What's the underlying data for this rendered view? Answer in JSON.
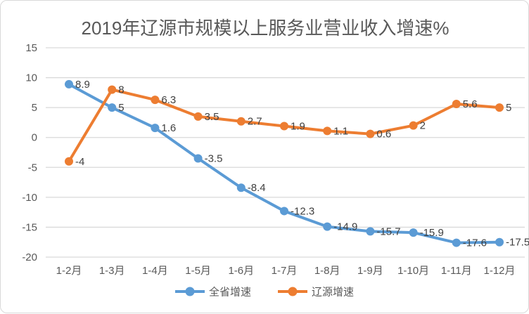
{
  "chart_data": {
    "type": "line",
    "title": "2019年辽源市规模以上服务业营业收入增速%",
    "categories": [
      "1-2月",
      "1-3月",
      "1-4月",
      "1-5月",
      "1-6月",
      "1-7月",
      "1-8月",
      "1-9月",
      "1-10月",
      "1-11月",
      "1-12月"
    ],
    "series": [
      {
        "name": "全省增速",
        "color": "#5B9BD5",
        "values": [
          8.9,
          5,
          1.6,
          -3.5,
          -8.4,
          -12.3,
          -14.9,
          -15.7,
          -15.9,
          -17.6,
          -17.5
        ],
        "labels": [
          "8.9",
          "5",
          "1.6",
          "-3.5",
          "-8.4",
          "-12.3",
          "-14.9",
          "-15.7",
          "-15.9",
          "-17.6",
          "-17.5"
        ]
      },
      {
        "name": "辽源增速",
        "color": "#ED7D31",
        "values": [
          -4,
          8,
          6.3,
          3.5,
          2.7,
          1.9,
          1.1,
          0.6,
          2,
          5.6,
          5
        ],
        "labels": [
          "-4",
          "8",
          "6.3",
          "3.5",
          "2.7",
          "1.9",
          "1.1",
          "0.6",
          "2",
          "5.6",
          "5"
        ]
      }
    ],
    "ylim": [
      -20,
      15
    ],
    "yticks": [
      15,
      10,
      5,
      0,
      -5,
      -10,
      -15,
      -20
    ],
    "grid": "horizontal",
    "legend_position": "bottom",
    "marker": "circle",
    "colors": {
      "grid": "#D9D9D9",
      "border": "#D9D9D9",
      "axis_text": "#595959",
      "data_label": "#404040",
      "title": "#595959",
      "background": "#FFFFFF"
    }
  }
}
